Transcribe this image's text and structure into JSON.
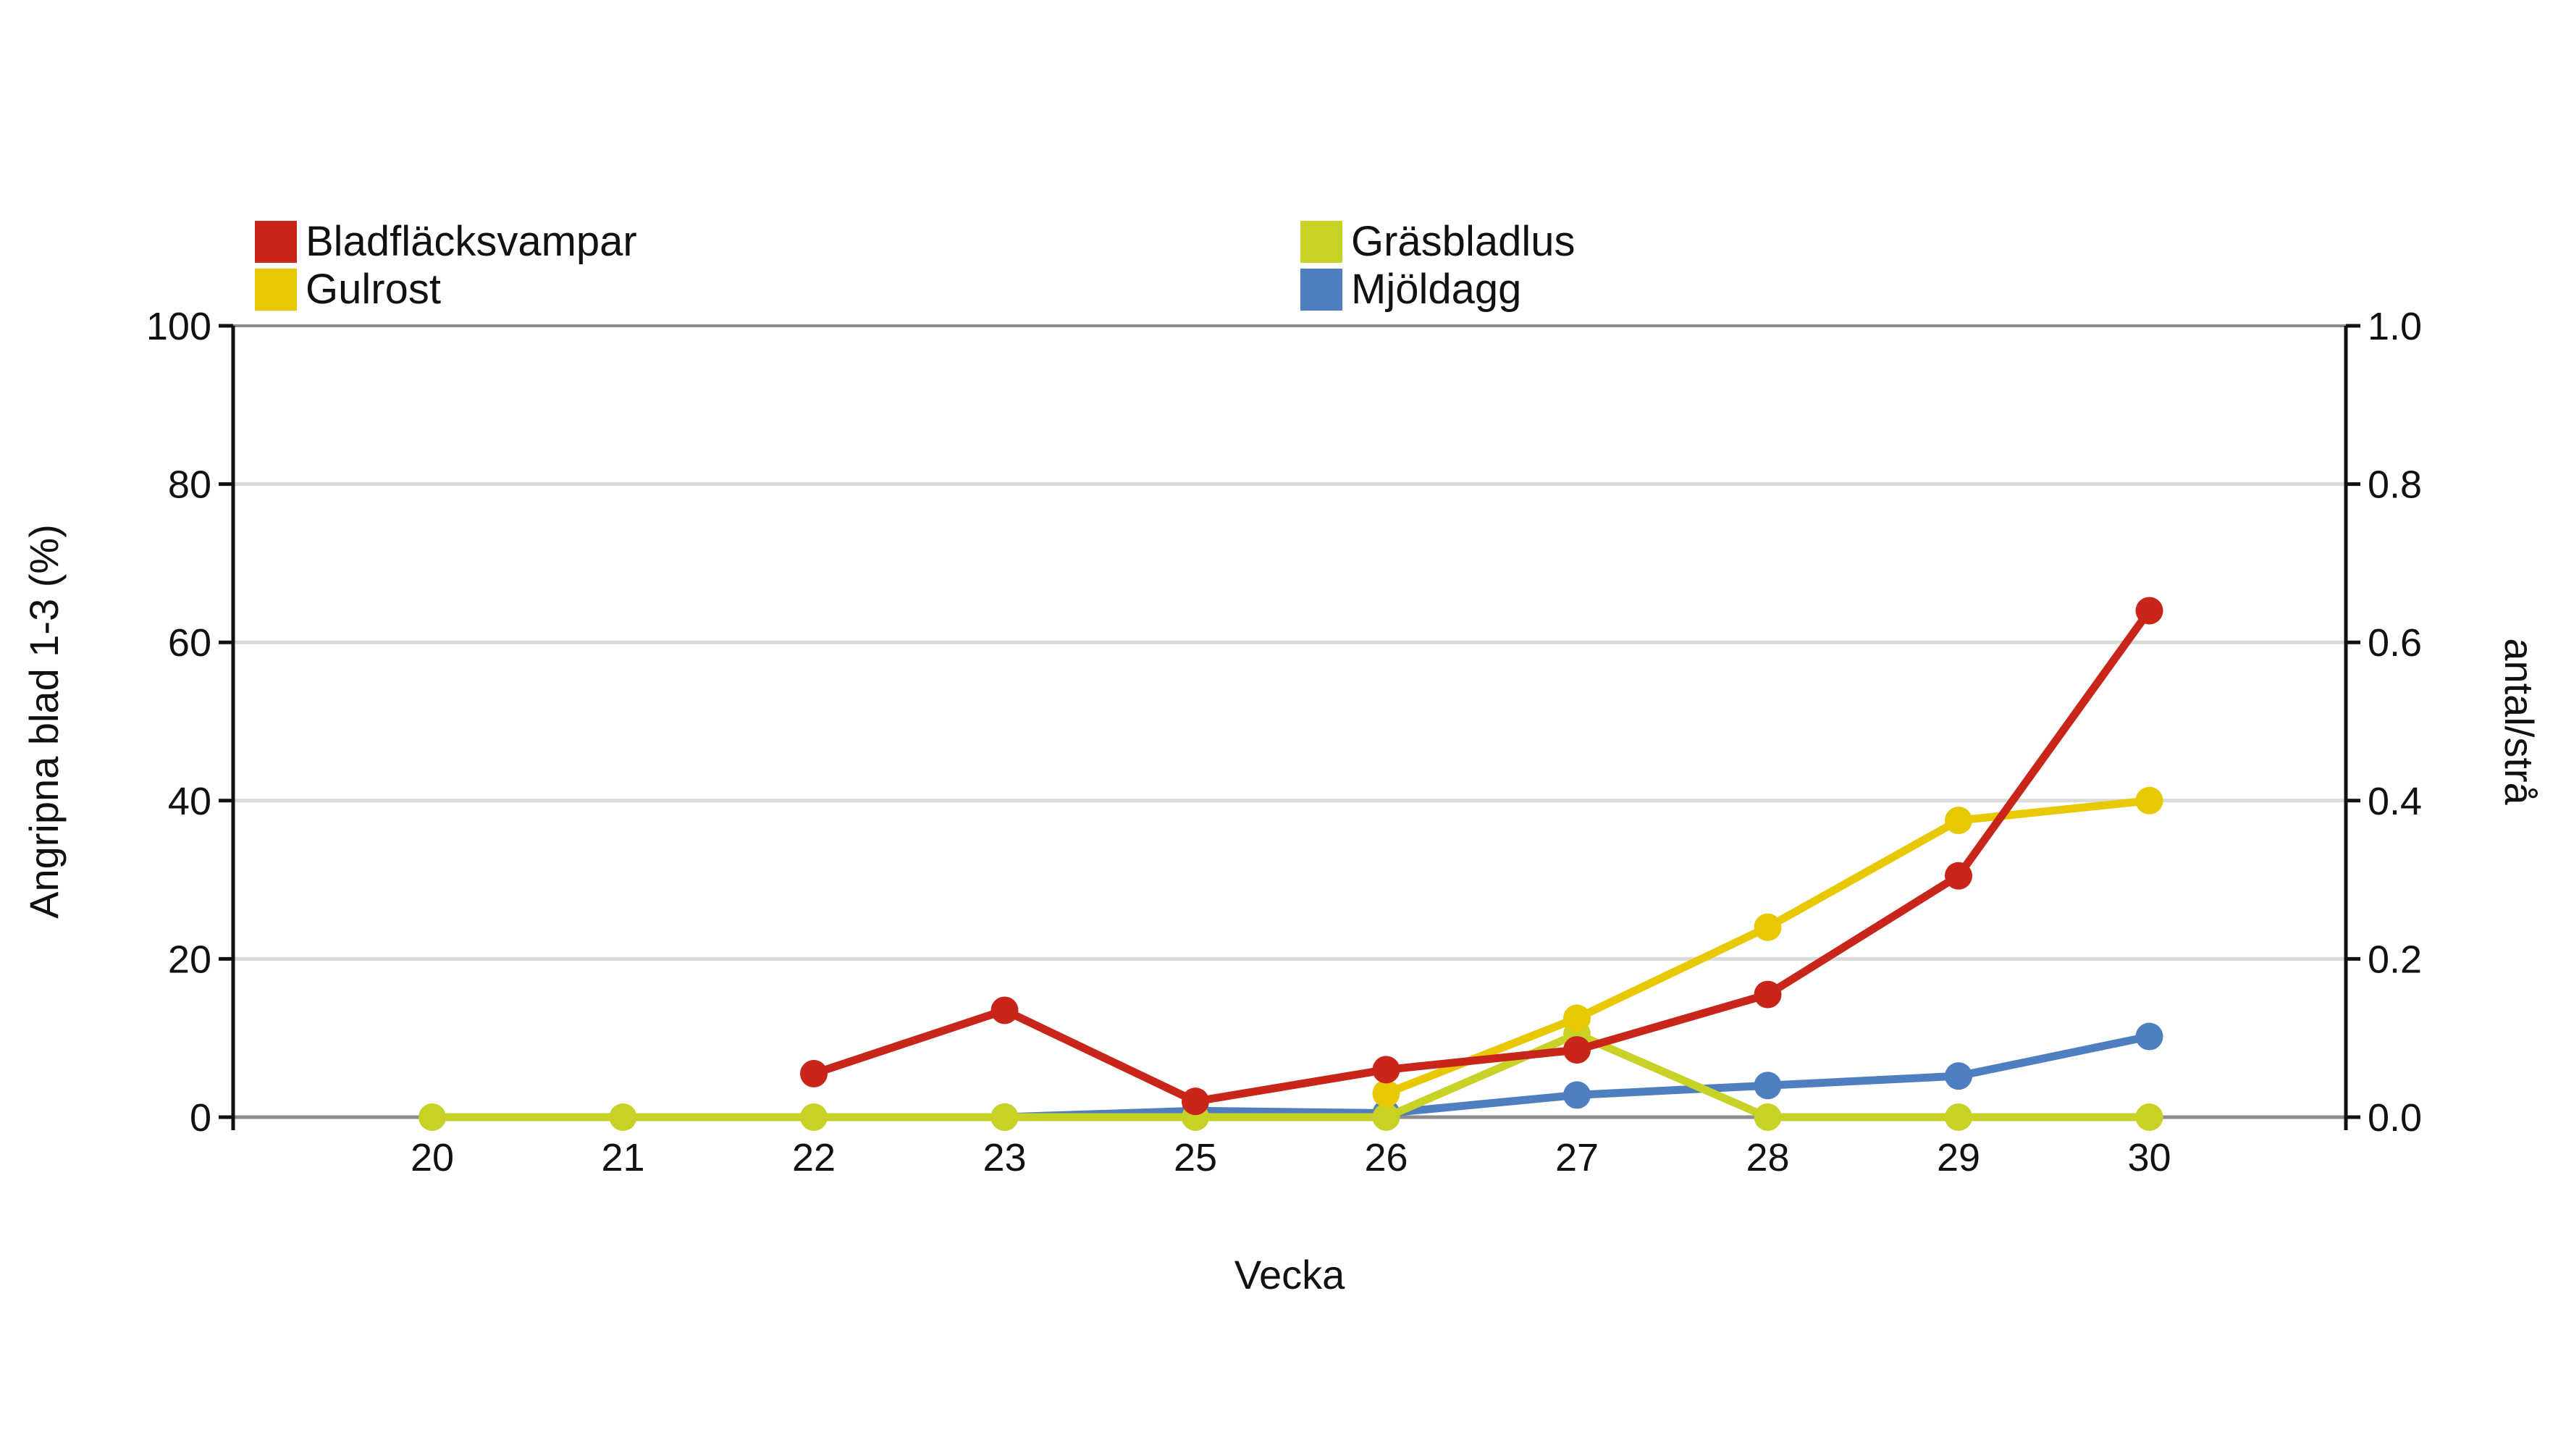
{
  "chart_data": {
    "type": "line",
    "title": "",
    "xlabel": "Vecka",
    "ylabel_left": "Angripna blad 1-3 (%)",
    "ylabel_right": "antal/strå",
    "categories": [
      "20",
      "21",
      "22",
      "23",
      "25",
      "26",
      "27",
      "28",
      "29",
      "30"
    ],
    "ylim_left": [
      0,
      100
    ],
    "ylim_right": [
      0,
      1.0
    ],
    "yticks_left": [
      "0",
      "20",
      "40",
      "60",
      "80",
      "100"
    ],
    "yticks_right": [
      "0.0",
      "0.2",
      "0.4",
      "0.6",
      "0.8",
      "1.0"
    ],
    "grid": true,
    "legend_position": "top",
    "series": [
      {
        "name": "Bladfläcksvampar",
        "axis": "left",
        "color": "#c8261a",
        "values": [
          null,
          null,
          5.5,
          13.5,
          2,
          6,
          8.5,
          15.5,
          30.5,
          64
        ]
      },
      {
        "name": "Gulrost",
        "axis": "left",
        "color": "#e8c800",
        "values": [
          null,
          null,
          null,
          null,
          null,
          3,
          12.5,
          24,
          37.5,
          40
        ]
      },
      {
        "name": "Mjöldagg",
        "axis": "left",
        "color": "#4f7fc0",
        "values": [
          null,
          null,
          null,
          0,
          0.8,
          0.5,
          2.8,
          4,
          5.2,
          10.2
        ]
      },
      {
        "name": "Gräsbladlus",
        "axis": "right",
        "color": "#c8d226",
        "values": [
          0,
          0,
          0,
          0,
          0,
          0,
          0.105,
          0,
          0,
          0
        ]
      }
    ]
  }
}
